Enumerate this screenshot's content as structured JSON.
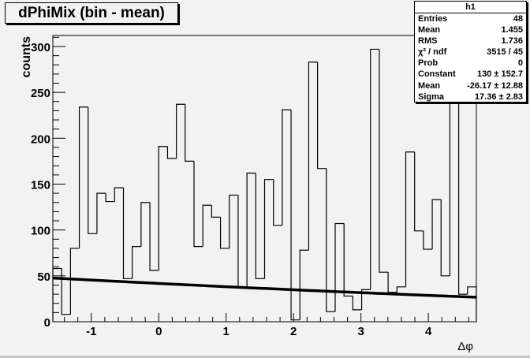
{
  "title": "dPhiMix (bin - mean)",
  "stats": {
    "name": "h1",
    "rows": [
      {
        "label": "Entries",
        "value": "48"
      },
      {
        "label": "Mean",
        "value": "1.455"
      },
      {
        "label": "RMS",
        "value": "1.736"
      },
      {
        "label": "χ² / ndf",
        "value": "3515 / 45"
      },
      {
        "label": "Prob",
        "value": "0"
      },
      {
        "label": "Constant",
        "value": "130 ± 152.7"
      },
      {
        "label": "Mean",
        "value": "-26.17 ± 12.88"
      },
      {
        "label": "Sigma",
        "value": "17.36 ± 2.83"
      }
    ]
  },
  "chart_data": {
    "type": "bar",
    "subtype": "histogram-step",
    "title": "dPhiMix (bin - mean)",
    "xlabel": "Δφ",
    "ylabel": "counts",
    "xlim": [
      -1.5708,
      4.7124
    ],
    "ylim": [
      0,
      312
    ],
    "nbins": 48,
    "values": [
      58,
      8,
      80,
      234,
      96,
      140,
      131,
      146,
      47,
      82,
      130,
      56,
      191,
      178,
      237,
      175,
      82,
      127,
      114,
      80,
      138,
      38,
      162,
      47,
      155,
      105,
      231,
      2,
      78,
      283,
      167,
      11,
      107,
      28,
      13,
      35,
      297,
      54,
      32,
      38,
      185,
      99,
      79,
      133,
      50,
      260,
      30,
      38
    ],
    "xticks": [
      -1,
      0,
      1,
      2,
      3,
      4
    ],
    "xtick_labels": [
      "-1",
      "0",
      "1",
      "2",
      "3",
      "4"
    ],
    "yticks": [
      0,
      50,
      100,
      150,
      200,
      250,
      300
    ],
    "ytick_labels": [
      "0",
      "50",
      "100",
      "150",
      "200",
      "250",
      "300"
    ],
    "fit": {
      "function": "gaus",
      "constant": 130,
      "mean": -26.17,
      "sigma": 17.36
    },
    "grid": false,
    "legend": "top-right"
  }
}
